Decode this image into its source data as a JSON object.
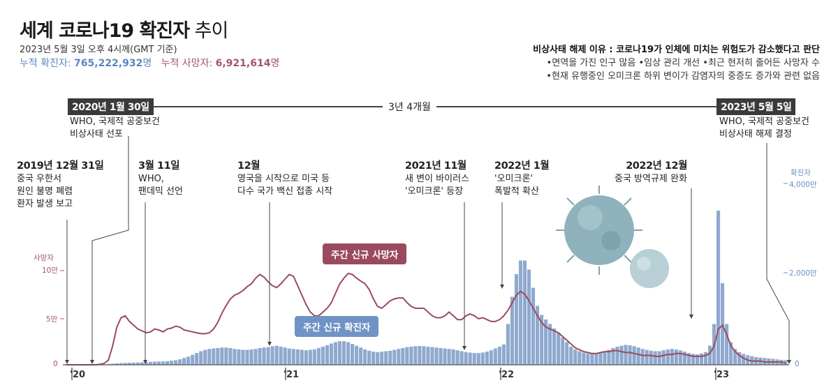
{
  "header": {
    "title_bold": "세계 코로나19 확진자",
    "title_light": " 추이",
    "subtitle": "2023년 5월 3일 오후 4시께(GMT 기준)",
    "cum_cases_label": "누적 확진자: ",
    "cum_cases_value": "765,222,932",
    "cum_cases_unit": "명",
    "cum_deaths_label": "누적 사망자: ",
    "cum_deaths_value": "6,921,614",
    "cum_deaths_unit": "명"
  },
  "reason": {
    "heading": "비상사태 해제 이유 : 코로나19가 인체에 미치는 위험도가 감소했다고 판단",
    "line1": "•면역을 가진 인구 많음  •임상 관리 개선  •최근 현저히 줄어든 사망자 수",
    "line2": "•현재 유행중인 오미크론 하위 변이가 감염자의 중증도 증가와 관련 없음"
  },
  "timeline": {
    "start_tag": "2020년 1월 30일",
    "start_note1": "WHO, 국제적 공중보건",
    "start_note2": "비상사태 선포",
    "span": "3년 4개월",
    "end_tag": "2023년 5월 5일",
    "end_note1": "WHO, 국제적 공중보건",
    "end_note2": "비상사태 해제 결정"
  },
  "events": [
    {
      "title": "2019년 12월 31일",
      "lines": [
        "중국 우한서",
        "원인 불명 폐렴",
        "환자 발생 보고"
      ]
    },
    {
      "title": "3월 11일",
      "lines": [
        "WHO,",
        "팬데믹 선언"
      ]
    },
    {
      "title": "12월",
      "lines": [
        "영국을 시작으로 미국 등",
        "다수 국가 백신 접종 시작"
      ]
    },
    {
      "title": "2021년 11월",
      "lines": [
        "새 변이 바이러스",
        "'오미크론' 등장"
      ]
    },
    {
      "title": "2022년 1월",
      "lines": [
        "'오미크론'",
        "폭발적 확산"
      ]
    },
    {
      "title": "2022년 12월",
      "lines": [
        "중국 방역규제 완화"
      ]
    }
  ],
  "colors": {
    "cases": "#8fa9cf",
    "deaths": "#9b4a5e",
    "tag_bg": "#3a3a3a"
  },
  "chart_data": {
    "type": "bar+line",
    "x_labels": [
      "'20",
      "'21",
      "'22",
      "'23"
    ],
    "left_axis": {
      "label": "사망자",
      "ticks": [
        "10만",
        "5만",
        "0"
      ],
      "ylim": [
        0,
        120000
      ]
    },
    "right_axis": {
      "label": "확진자",
      "ticks": [
        "4,000만",
        "2,000만",
        "0"
      ],
      "ylim": [
        0,
        4000
      ]
    },
    "series": [
      {
        "name": "주간 신규 확진자",
        "kind": "bar",
        "unit": "만명",
        "values": [
          0,
          0,
          0,
          0,
          0,
          0,
          1,
          2,
          5,
          10,
          18,
          25,
          32,
          38,
          42,
          45,
          48,
          52,
          55,
          60,
          65,
          70,
          72,
          75,
          80,
          90,
          100,
          120,
          150,
          180,
          220,
          260,
          300,
          330,
          350,
          360,
          370,
          380,
          380,
          370,
          350,
          340,
          330,
          330,
          340,
          350,
          370,
          380,
          390,
          410,
          420,
          400,
          380,
          360,
          350,
          340,
          330,
          320,
          330,
          340,
          370,
          400,
          430,
          470,
          500,
          520,
          520,
          500,
          460,
          420,
          380,
          340,
          310,
          290,
          280,
          290,
          300,
          310,
          330,
          350,
          370,
          390,
          400,
          410,
          415,
          410,
          400,
          390,
          380,
          370,
          360,
          350,
          340,
          320,
          300,
          280,
          270,
          260,
          260,
          270,
          290,
          320,
          360,
          400,
          450,
          900,
          1500,
          2000,
          2300,
          2300,
          2100,
          1700,
          1300,
          1100,
          1000,
          900,
          800,
          700,
          600,
          500,
          400,
          340,
          300,
          270,
          250,
          240,
          260,
          280,
          300,
          330,
          370,
          400,
          420,
          440,
          430,
          410,
          380,
          350,
          330,
          310,
          300,
          300,
          320,
          340,
          350,
          340,
          320,
          290,
          260,
          240,
          230,
          250,
          280,
          420,
          900,
          3400,
          1800,
          900,
          500,
          350,
          280,
          240,
          210,
          190,
          170,
          160,
          150,
          140,
          130,
          120,
          110,
          100
        ]
      },
      {
        "name": "주간 신규 사망자",
        "kind": "line",
        "unit": "명",
        "values": [
          0,
          0,
          0,
          0,
          0,
          0,
          0,
          0,
          500,
          1500,
          5000,
          20000,
          40000,
          50000,
          52000,
          46000,
          42000,
          38000,
          36000,
          34000,
          35000,
          38000,
          37000,
          35000,
          38000,
          39000,
          41000,
          40000,
          37000,
          36000,
          35000,
          34000,
          33000,
          33000,
          34000,
          38000,
          45000,
          55000,
          63000,
          70000,
          74000,
          76000,
          79000,
          83000,
          86000,
          92000,
          96000,
          93000,
          88000,
          84000,
          82000,
          86000,
          91000,
          96000,
          94000,
          84000,
          74000,
          64000,
          56000,
          52000,
          52000,
          56000,
          60000,
          66000,
          76000,
          86000,
          92000,
          97000,
          96000,
          92000,
          89000,
          86000,
          80000,
          70000,
          62000,
          60000,
          64000,
          68000,
          70000,
          71000,
          71000,
          66000,
          62000,
          60000,
          60000,
          60000,
          56000,
          52000,
          50000,
          50000,
          52000,
          56000,
          52000,
          48000,
          48000,
          52000,
          54000,
          52000,
          49000,
          50000,
          48000,
          46000,
          46000,
          48000,
          52000,
          58000,
          66000,
          74000,
          78000,
          75000,
          68000,
          60000,
          52000,
          45000,
          40000,
          38000,
          36000,
          34000,
          30000,
          26000,
          22000,
          18000,
          16000,
          14000,
          13000,
          12000,
          12000,
          13000,
          14000,
          14000,
          15000,
          15000,
          14000,
          13000,
          13000,
          12000,
          11000,
          10000,
          10000,
          10000,
          9000,
          9000,
          10000,
          11000,
          11000,
          12000,
          12000,
          11000,
          10000,
          9000,
          9000,
          9000,
          10000,
          12000,
          20000,
          38000,
          42000,
          32000,
          20000,
          14000,
          10000,
          7000,
          5000,
          4000,
          4000,
          4000,
          3000,
          3000,
          3000,
          3000,
          3000,
          2000
        ]
      }
    ],
    "series_labels": {
      "cases": "주간 신규 확진자",
      "deaths": "주간 신규 사망자"
    }
  }
}
